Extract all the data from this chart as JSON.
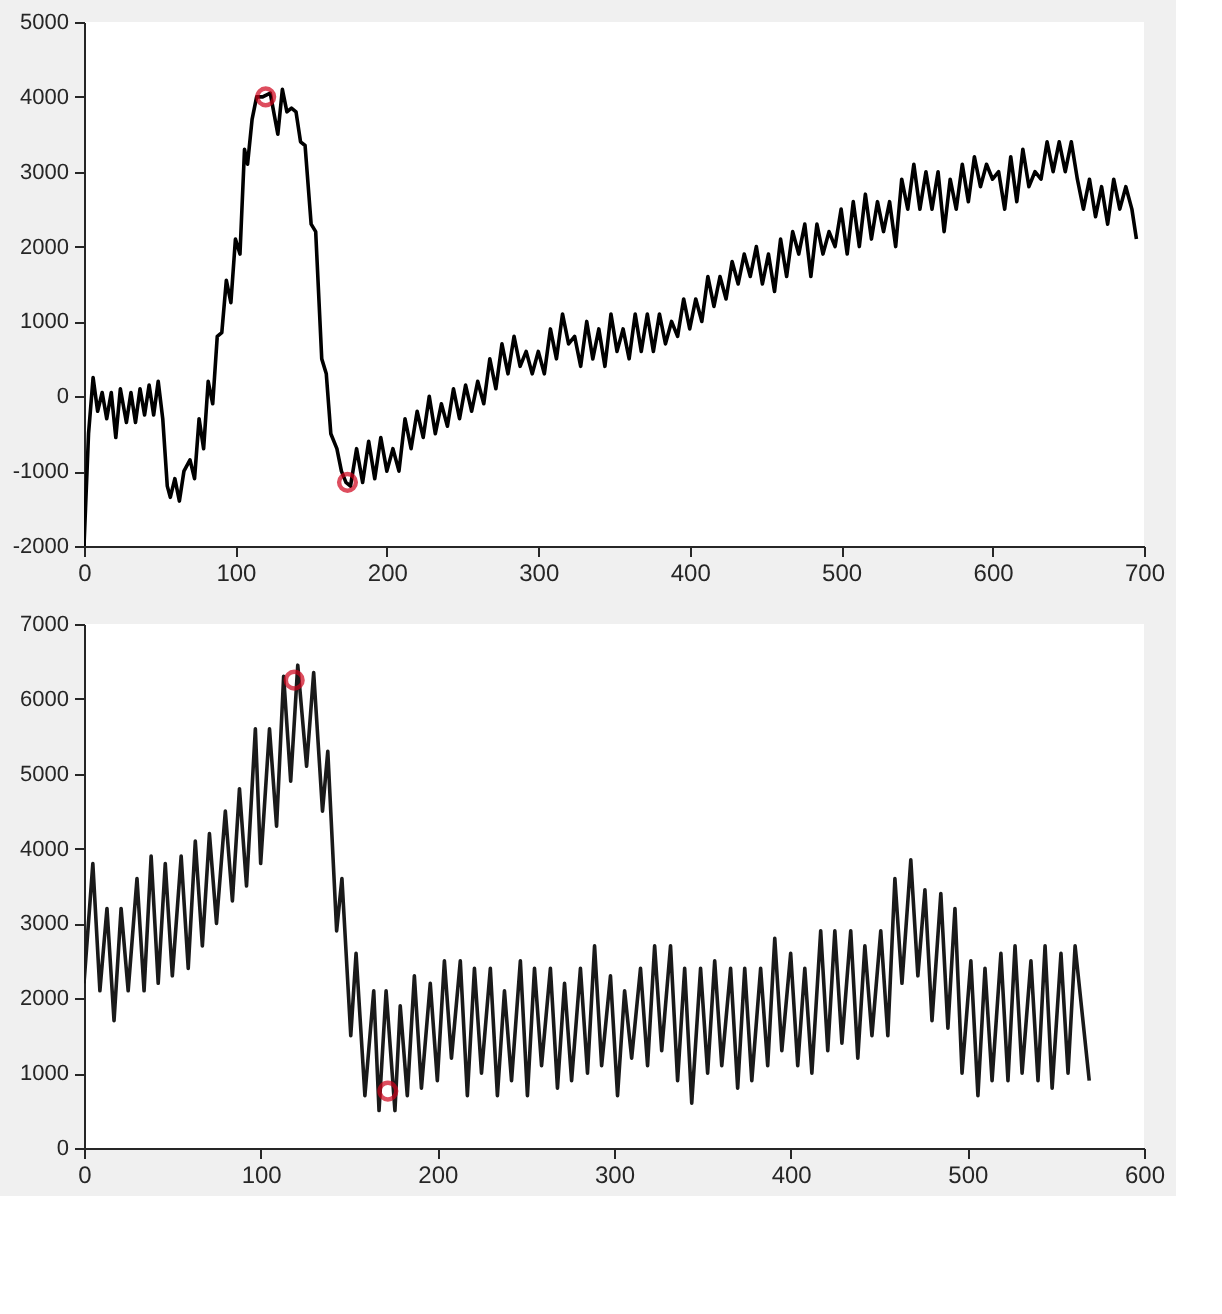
{
  "chart_data": [
    {
      "type": "line",
      "xlim": [
        0,
        700
      ],
      "ylim": [
        -2000,
        5000
      ],
      "xticks": [
        0,
        100,
        200,
        300,
        400,
        500,
        600,
        700
      ],
      "yticks": [
        -2000,
        -1000,
        0,
        1000,
        2000,
        3000,
        4000,
        5000
      ],
      "series": [
        {
          "color": "#000000",
          "x": [
            0,
            3,
            6,
            9,
            12,
            15,
            18,
            21,
            24,
            28,
            31,
            34,
            37,
            40,
            43,
            46,
            49,
            52,
            55,
            57,
            60,
            63,
            66,
            70,
            73,
            76,
            79,
            82,
            85,
            88,
            91,
            94,
            97,
            100,
            103,
            106,
            108,
            111,
            114,
            118,
            123,
            128,
            131,
            134,
            137,
            140,
            143,
            146,
            150,
            153,
            157,
            160,
            163,
            167,
            170,
            173,
            176,
            180,
            184,
            188,
            192,
            196,
            200,
            204,
            208,
            212,
            216,
            220,
            224,
            228,
            232,
            236,
            240,
            244,
            248,
            252,
            256,
            260,
            264,
            268,
            272,
            276,
            280,
            284,
            288,
            292,
            296,
            300,
            304,
            308,
            312,
            316,
            320,
            324,
            328,
            332,
            336,
            340,
            344,
            348,
            352,
            356,
            360,
            364,
            368,
            372,
            376,
            380,
            384,
            388,
            392,
            396,
            400,
            404,
            408,
            412,
            416,
            420,
            424,
            428,
            432,
            436,
            440,
            444,
            448,
            452,
            456,
            460,
            464,
            468,
            472,
            476,
            480,
            484,
            488,
            492,
            496,
            500,
            504,
            508,
            512,
            516,
            520,
            524,
            528,
            532,
            536,
            540,
            544,
            548,
            552,
            556,
            560,
            564,
            568,
            572,
            576,
            580,
            584,
            588,
            592,
            596,
            600,
            604,
            608,
            612,
            616,
            620,
            624,
            628,
            632,
            636,
            640,
            644,
            648,
            652,
            656,
            660,
            664,
            668,
            672,
            676,
            680,
            684,
            688,
            692,
            695
          ],
          "values": [
            -2000,
            -500,
            250,
            -200,
            50,
            -300,
            50,
            -550,
            100,
            -350,
            50,
            -350,
            100,
            -250,
            150,
            -250,
            200,
            -300,
            -1200,
            -1350,
            -1100,
            -1400,
            -1000,
            -850,
            -1100,
            -300,
            -700,
            200,
            -100,
            800,
            850,
            1550,
            1250,
            2100,
            1900,
            3300,
            3100,
            3700,
            4000,
            4000,
            4050,
            3500,
            4100,
            3800,
            3850,
            3800,
            3400,
            3350,
            2300,
            2200,
            500,
            300,
            -500,
            -700,
            -1000,
            -1150,
            -1200,
            -700,
            -1150,
            -600,
            -1100,
            -550,
            -1000,
            -700,
            -1000,
            -300,
            -700,
            -200,
            -550,
            0,
            -500,
            -100,
            -400,
            100,
            -300,
            150,
            -200,
            200,
            -100,
            500,
            100,
            700,
            300,
            800,
            400,
            600,
            300,
            600,
            300,
            900,
            500,
            1100,
            700,
            800,
            400,
            1000,
            500,
            900,
            400,
            1100,
            600,
            900,
            500,
            1100,
            600,
            1100,
            600,
            1100,
            700,
            1000,
            800,
            1300,
            900,
            1300,
            1000,
            1600,
            1200,
            1600,
            1300,
            1800,
            1500,
            1900,
            1600,
            2000,
            1500,
            1900,
            1400,
            2100,
            1600,
            2200,
            1900,
            2300,
            1600,
            2300,
            1900,
            2200,
            2000,
            2500,
            1900,
            2600,
            2000,
            2700,
            2100,
            2600,
            2200,
            2600,
            2000,
            2900,
            2500,
            3100,
            2500,
            3000,
            2500,
            3000,
            2200,
            2900,
            2500,
            3100,
            2600,
            3200,
            2800,
            3100,
            2900,
            3000,
            2500,
            3200,
            2600,
            3300,
            2800,
            3000,
            2900,
            3400,
            3000,
            3400,
            3000,
            3400,
            2900,
            2500,
            2900,
            2400,
            2800,
            2300,
            2900,
            2500,
            2800,
            2500,
            2100
          ]
        },
        {
          "type": "scatter",
          "marker": "circle",
          "color": "#d0021b",
          "x": [
            120,
            174
          ],
          "values": [
            4000,
            -1150
          ]
        }
      ]
    },
    {
      "type": "line",
      "xlim": [
        0,
        600
      ],
      "ylim": [
        0,
        7000
      ],
      "xticks": [
        0,
        100,
        200,
        300,
        400,
        500,
        600
      ],
      "yticks": [
        0,
        1000,
        2000,
        3000,
        4000,
        5000,
        6000,
        7000
      ],
      "series": [
        {
          "color": "#1a1a1a",
          "x": [
            0,
            5,
            9,
            13,
            17,
            21,
            25,
            30,
            34,
            38,
            42,
            46,
            50,
            55,
            59,
            63,
            67,
            71,
            75,
            80,
            84,
            88,
            92,
            97,
            100,
            105,
            109,
            113,
            117,
            121,
            126,
            130,
            135,
            138,
            143,
            146,
            151,
            154,
            159,
            164,
            167,
            171,
            176,
            179,
            183,
            187,
            191,
            196,
            200,
            204,
            208,
            213,
            217,
            221,
            225,
            230,
            234,
            238,
            242,
            247,
            251,
            255,
            259,
            264,
            268,
            272,
            276,
            281,
            285,
            289,
            293,
            298,
            302,
            306,
            310,
            315,
            319,
            323,
            327,
            332,
            336,
            340,
            344,
            349,
            353,
            357,
            361,
            366,
            370,
            374,
            378,
            383,
            387,
            391,
            395,
            400,
            404,
            408,
            412,
            417,
            421,
            425,
            429,
            434,
            438,
            442,
            446,
            451,
            455,
            459,
            463,
            468,
            472,
            476,
            480,
            485,
            489,
            493,
            497,
            502,
            506,
            510,
            514,
            519,
            523,
            527,
            531,
            536,
            540,
            544,
            548,
            553,
            557,
            561,
            569
          ],
          "values": [
            2200,
            3800,
            2100,
            3200,
            1700,
            3200,
            2100,
            3600,
            2100,
            3900,
            2200,
            3800,
            2300,
            3900,
            2400,
            4100,
            2700,
            4200,
            3000,
            4500,
            3300,
            4800,
            3500,
            5600,
            3800,
            5600,
            4300,
            6300,
            4900,
            6450,
            5100,
            6350,
            4500,
            5300,
            2900,
            3600,
            1500,
            2600,
            700,
            2100,
            500,
            2100,
            500,
            1900,
            700,
            2300,
            800,
            2200,
            900,
            2500,
            1200,
            2500,
            700,
            2400,
            1000,
            2400,
            700,
            2100,
            900,
            2500,
            700,
            2400,
            1100,
            2400,
            800,
            2200,
            900,
            2400,
            1000,
            2700,
            1100,
            2300,
            700,
            2100,
            1200,
            2400,
            1100,
            2700,
            1300,
            2700,
            900,
            2400,
            600,
            2400,
            1000,
            2500,
            1100,
            2400,
            800,
            2400,
            900,
            2400,
            1100,
            2800,
            1300,
            2600,
            1100,
            2400,
            1000,
            2900,
            1300,
            2900,
            1400,
            2900,
            1200,
            2700,
            1500,
            2900,
            1500,
            3600,
            2200,
            3850,
            2300,
            3450,
            1700,
            3400,
            1600,
            3200,
            1000,
            2500,
            700,
            2400,
            900,
            2600,
            900,
            2700,
            1000,
            2500,
            900,
            2700,
            800,
            2600,
            1000,
            2700,
            900
          ]
        },
        {
          "type": "scatter",
          "marker": "circle",
          "color": "#d0021b",
          "x": [
            119,
            172
          ],
          "values": [
            6250,
            760
          ]
        }
      ]
    }
  ]
}
